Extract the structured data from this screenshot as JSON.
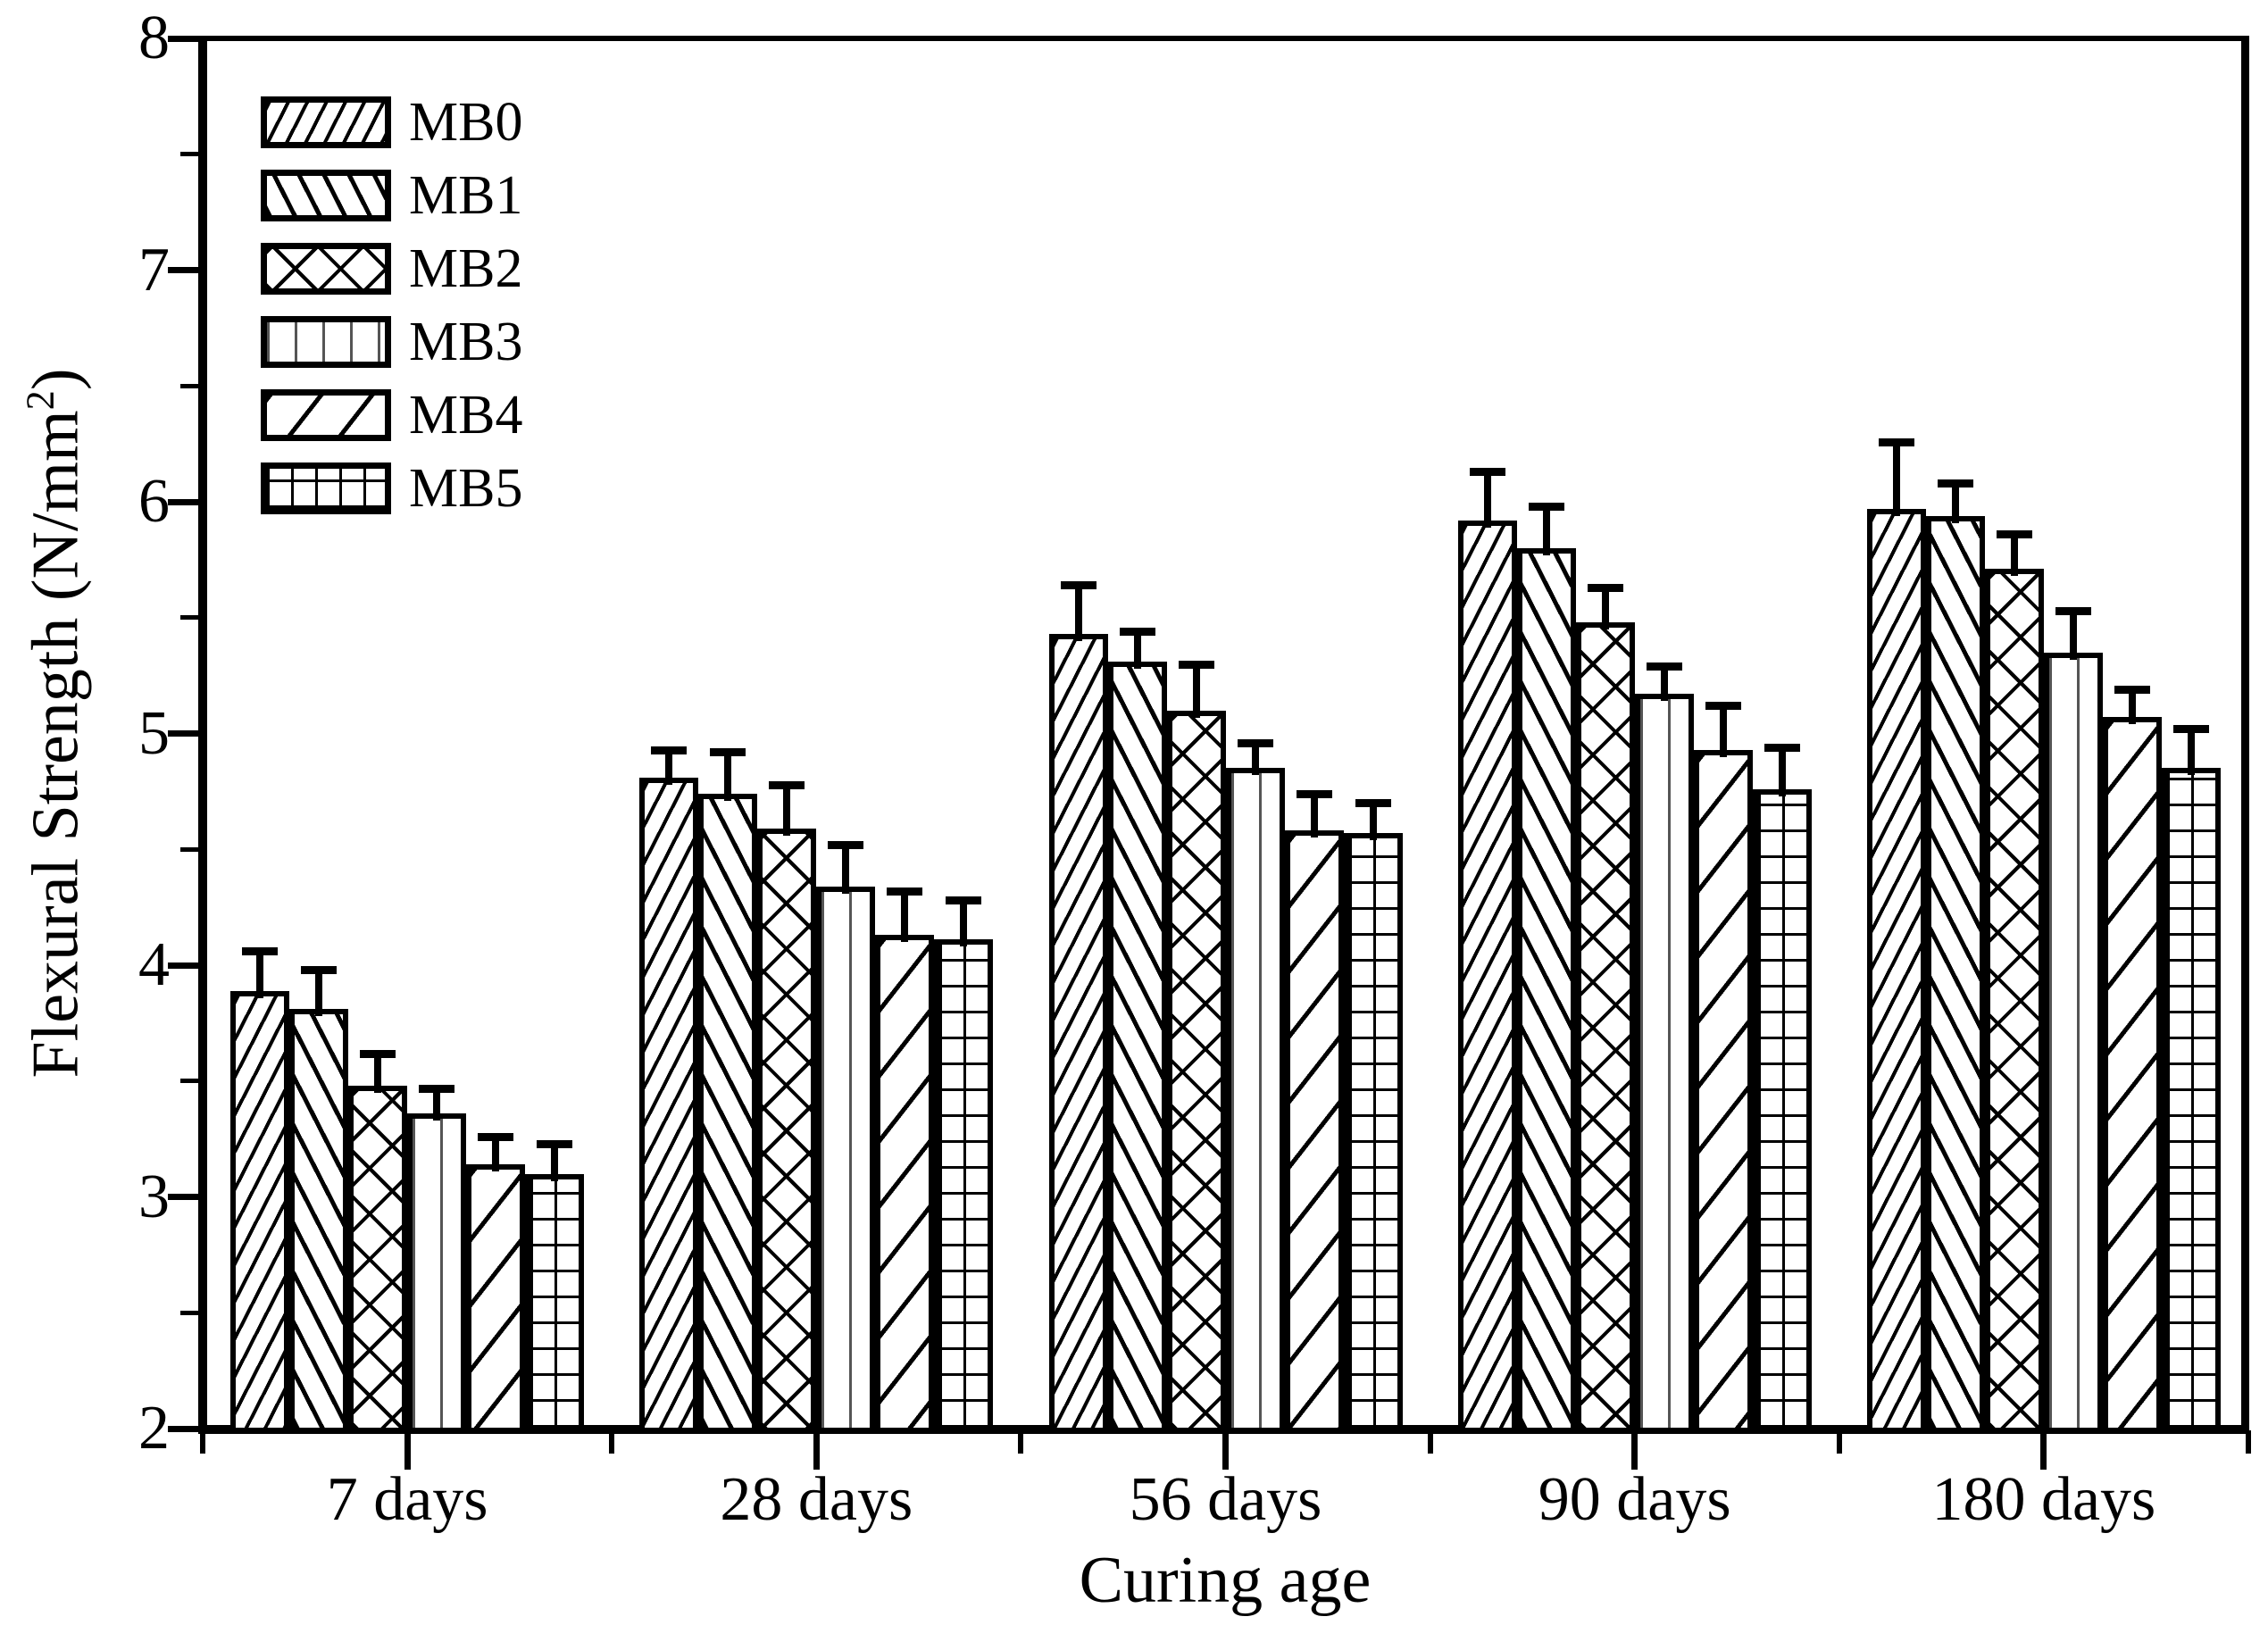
{
  "figure": {
    "background_color": "#ffffff",
    "ink_color": "#000000"
  },
  "chart_data": {
    "type": "bar",
    "title": "",
    "xlabel": "Curing age",
    "ylabel": {
      "text": "Flexural Strength (N/mm²)",
      "main": "Flexural Strength (N/mm",
      "sup": "2",
      "close": ")"
    },
    "categories": [
      "7 days",
      "28 days",
      "56 days",
      "90 days",
      "180 days"
    ],
    "series": [
      {
        "name": "MB0",
        "pattern": "dense-forward-diagonal",
        "values": [
          3.89,
          4.81,
          5.43,
          5.92,
          5.97
        ],
        "errors": [
          0.17,
          0.12,
          0.21,
          0.21,
          0.29
        ]
      },
      {
        "name": "MB1",
        "pattern": "backward-diagonal",
        "values": [
          3.81,
          4.74,
          5.31,
          5.8,
          5.94
        ],
        "errors": [
          0.17,
          0.18,
          0.13,
          0.18,
          0.14
        ]
      },
      {
        "name": "MB2",
        "pattern": "crosshatch",
        "values": [
          3.48,
          4.59,
          5.1,
          5.48,
          5.71
        ],
        "errors": [
          0.14,
          0.19,
          0.2,
          0.15,
          0.15
        ]
      },
      {
        "name": "MB3",
        "pattern": "vertical-lines",
        "values": [
          3.36,
          4.34,
          4.85,
          5.17,
          5.35
        ],
        "errors": [
          0.11,
          0.18,
          0.11,
          0.12,
          0.18
        ]
      },
      {
        "name": "MB4",
        "pattern": "sparse-forward-diagonal",
        "values": [
          3.14,
          4.13,
          4.58,
          4.93,
          5.07
        ],
        "errors": [
          0.12,
          0.19,
          0.16,
          0.19,
          0.12
        ]
      },
      {
        "name": "MB5",
        "pattern": "grid",
        "values": [
          3.1,
          4.11,
          4.57,
          4.76,
          4.85
        ],
        "errors": [
          0.13,
          0.17,
          0.13,
          0.18,
          0.17
        ]
      }
    ],
    "y_axis": {
      "min": 2,
      "max": 8,
      "major_step": 1,
      "minor_step": 0.5,
      "tick_labels": [
        "2",
        "3",
        "4",
        "5",
        "6",
        "7",
        "8"
      ]
    },
    "error_bars": "upper-only",
    "legend_position": "top-left-inside",
    "grid": false
  }
}
